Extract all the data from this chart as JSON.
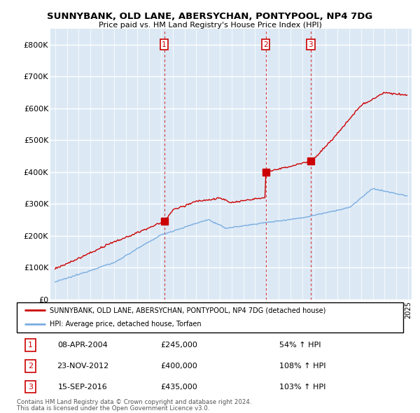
{
  "title": "SUNNYBANK, OLD LANE, ABERSYCHAN, PONTYPOOL, NP4 7DG",
  "subtitle": "Price paid vs. HM Land Registry's House Price Index (HPI)",
  "background_color": "#ffffff",
  "plot_bg_color": "#dce9f5",
  "grid_color": "#ffffff",
  "sale_color": "#cc0000",
  "hpi_color": "#7aade0",
  "vline_color": "#cc0000",
  "ylim": [
    0,
    850000
  ],
  "yticks": [
    0,
    100000,
    200000,
    300000,
    400000,
    500000,
    600000,
    700000,
    800000
  ],
  "ytick_labels": [
    "£0",
    "£100K",
    "£200K",
    "£300K",
    "£400K",
    "£500K",
    "£600K",
    "£700K",
    "£800K"
  ],
  "sale_years": [
    2004.27,
    2012.9,
    2016.72
  ],
  "sale_prices": [
    245000,
    400000,
    435000
  ],
  "sale_labels": [
    "1",
    "2",
    "3"
  ],
  "legend_entries": [
    {
      "label": "SUNNYBANK, OLD LANE, ABERSYCHAN, PONTYPOOL, NP4 7DG (detached house)",
      "color": "#cc0000"
    },
    {
      "label": "HPI: Average price, detached house, Torfaen",
      "color": "#7aade0"
    }
  ],
  "table_rows": [
    {
      "num": "1",
      "date": "08-APR-2004",
      "price": "£245,000",
      "pct": "54% ↑ HPI"
    },
    {
      "num": "2",
      "date": "23-NOV-2012",
      "price": "£400,000",
      "pct": "108% ↑ HPI"
    },
    {
      "num": "3",
      "date": "15-SEP-2016",
      "price": "£435,000",
      "pct": "103% ↑ HPI"
    }
  ],
  "footnote1": "Contains HM Land Registry data © Crown copyright and database right 2024.",
  "footnote2": "This data is licensed under the Open Government Licence v3.0."
}
